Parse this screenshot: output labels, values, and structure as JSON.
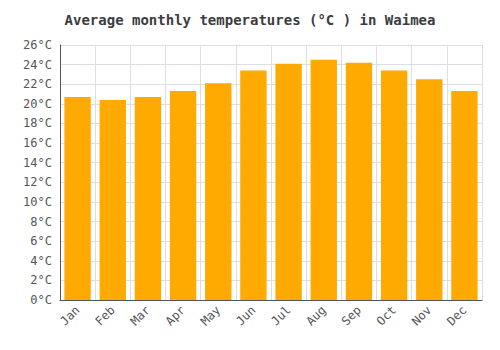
{
  "chart_data": {
    "type": "bar",
    "title": "Average monthly temperatures (°C ) in Waimea",
    "categories": [
      "Jan",
      "Feb",
      "Mar",
      "Apr",
      "May",
      "Jun",
      "Jul",
      "Aug",
      "Sep",
      "Oct",
      "Nov",
      "Dec"
    ],
    "values": [
      20.7,
      20.4,
      20.7,
      21.3,
      22.1,
      23.4,
      24.1,
      24.5,
      24.2,
      23.4,
      22.5,
      21.3
    ],
    "color": "#FFAA00",
    "ylim": [
      0,
      26
    ],
    "yticks": [
      {
        "value": 0,
        "label": "0°C"
      },
      {
        "value": 2,
        "label": "2°C"
      },
      {
        "value": 4,
        "label": "4°C"
      },
      {
        "value": 6,
        "label": "6°C"
      },
      {
        "value": 8,
        "label": "8°C"
      },
      {
        "value": 10,
        "label": "10°C"
      },
      {
        "value": 12,
        "label": "12°C"
      },
      {
        "value": 14,
        "label": "14°C"
      },
      {
        "value": 16,
        "label": "16°C"
      },
      {
        "value": 18,
        "label": "18°C"
      },
      {
        "value": 20,
        "label": "20°C"
      },
      {
        "value": 22,
        "label": "22°C"
      },
      {
        "value": 24,
        "label": "24°C"
      },
      {
        "value": 26,
        "label": "26°C"
      }
    ],
    "grid": true
  }
}
